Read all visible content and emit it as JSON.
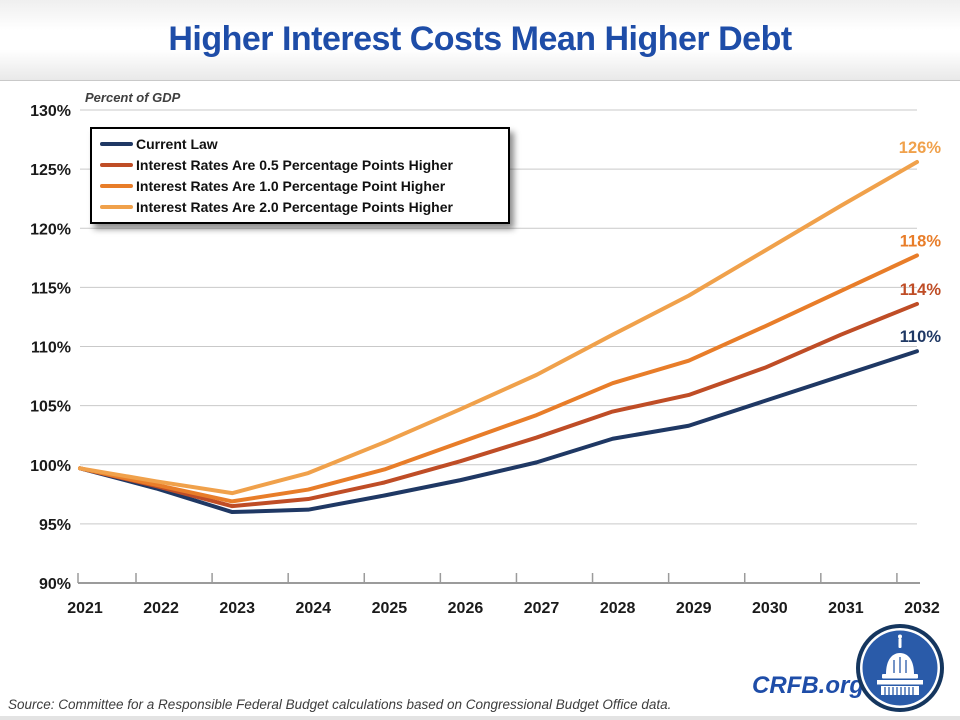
{
  "title": "Higher Interest Costs Mean Higher Debt",
  "axis_note": "Percent of GDP",
  "source": "Source: Committee for a Responsible Federal Budget calculations based on Congressional Budget Office data.",
  "branding": {
    "site": "CRFB.org",
    "logo": "capitol-dome-in-blue-circle"
  },
  "colors": {
    "title_blue": "#1e4da8",
    "gridline": "#c9c9c9",
    "axis_line": "#9b9b9b",
    "tick_text": "#1a1a1a"
  },
  "chart_data": {
    "type": "line",
    "x": [
      2021,
      2022,
      2023,
      2024,
      2025,
      2026,
      2027,
      2028,
      2029,
      2030,
      2031,
      2032
    ],
    "ylim": [
      90,
      130
    ],
    "ytick_step": 5,
    "ytick_suffix": "%",
    "grid": true,
    "legend_position": "top-left",
    "series": [
      {
        "name": "Current Law",
        "color": "#1f3864",
        "end_label": "110%",
        "values": [
          99.7,
          98.0,
          96.0,
          96.2,
          97.4,
          98.7,
          100.2,
          102.2,
          103.3,
          105.4,
          107.5,
          109.6
        ]
      },
      {
        "name": "Interest Rates Are 0.5 Percentage Points Higher",
        "color": "#bf4d26",
        "end_label": "114%",
        "values": [
          99.7,
          98.2,
          96.5,
          97.1,
          98.5,
          100.3,
          102.3,
          104.5,
          105.9,
          108.2,
          111.0,
          113.6
        ]
      },
      {
        "name": "Interest Rates Are 1.0 Percentage Point Higher",
        "color": "#e87d29",
        "end_label": "118%",
        "values": [
          99.7,
          98.3,
          96.9,
          97.9,
          99.6,
          101.9,
          104.2,
          106.9,
          108.8,
          111.7,
          114.7,
          117.7
        ]
      },
      {
        "name": "Interest Rates Are 2.0 Percentage Points Higher",
        "color": "#f0a14b",
        "end_label": "126%",
        "values": [
          99.7,
          98.6,
          97.6,
          99.3,
          101.9,
          104.7,
          107.6,
          111.0,
          114.3,
          118.1,
          121.9,
          125.6
        ]
      }
    ]
  }
}
